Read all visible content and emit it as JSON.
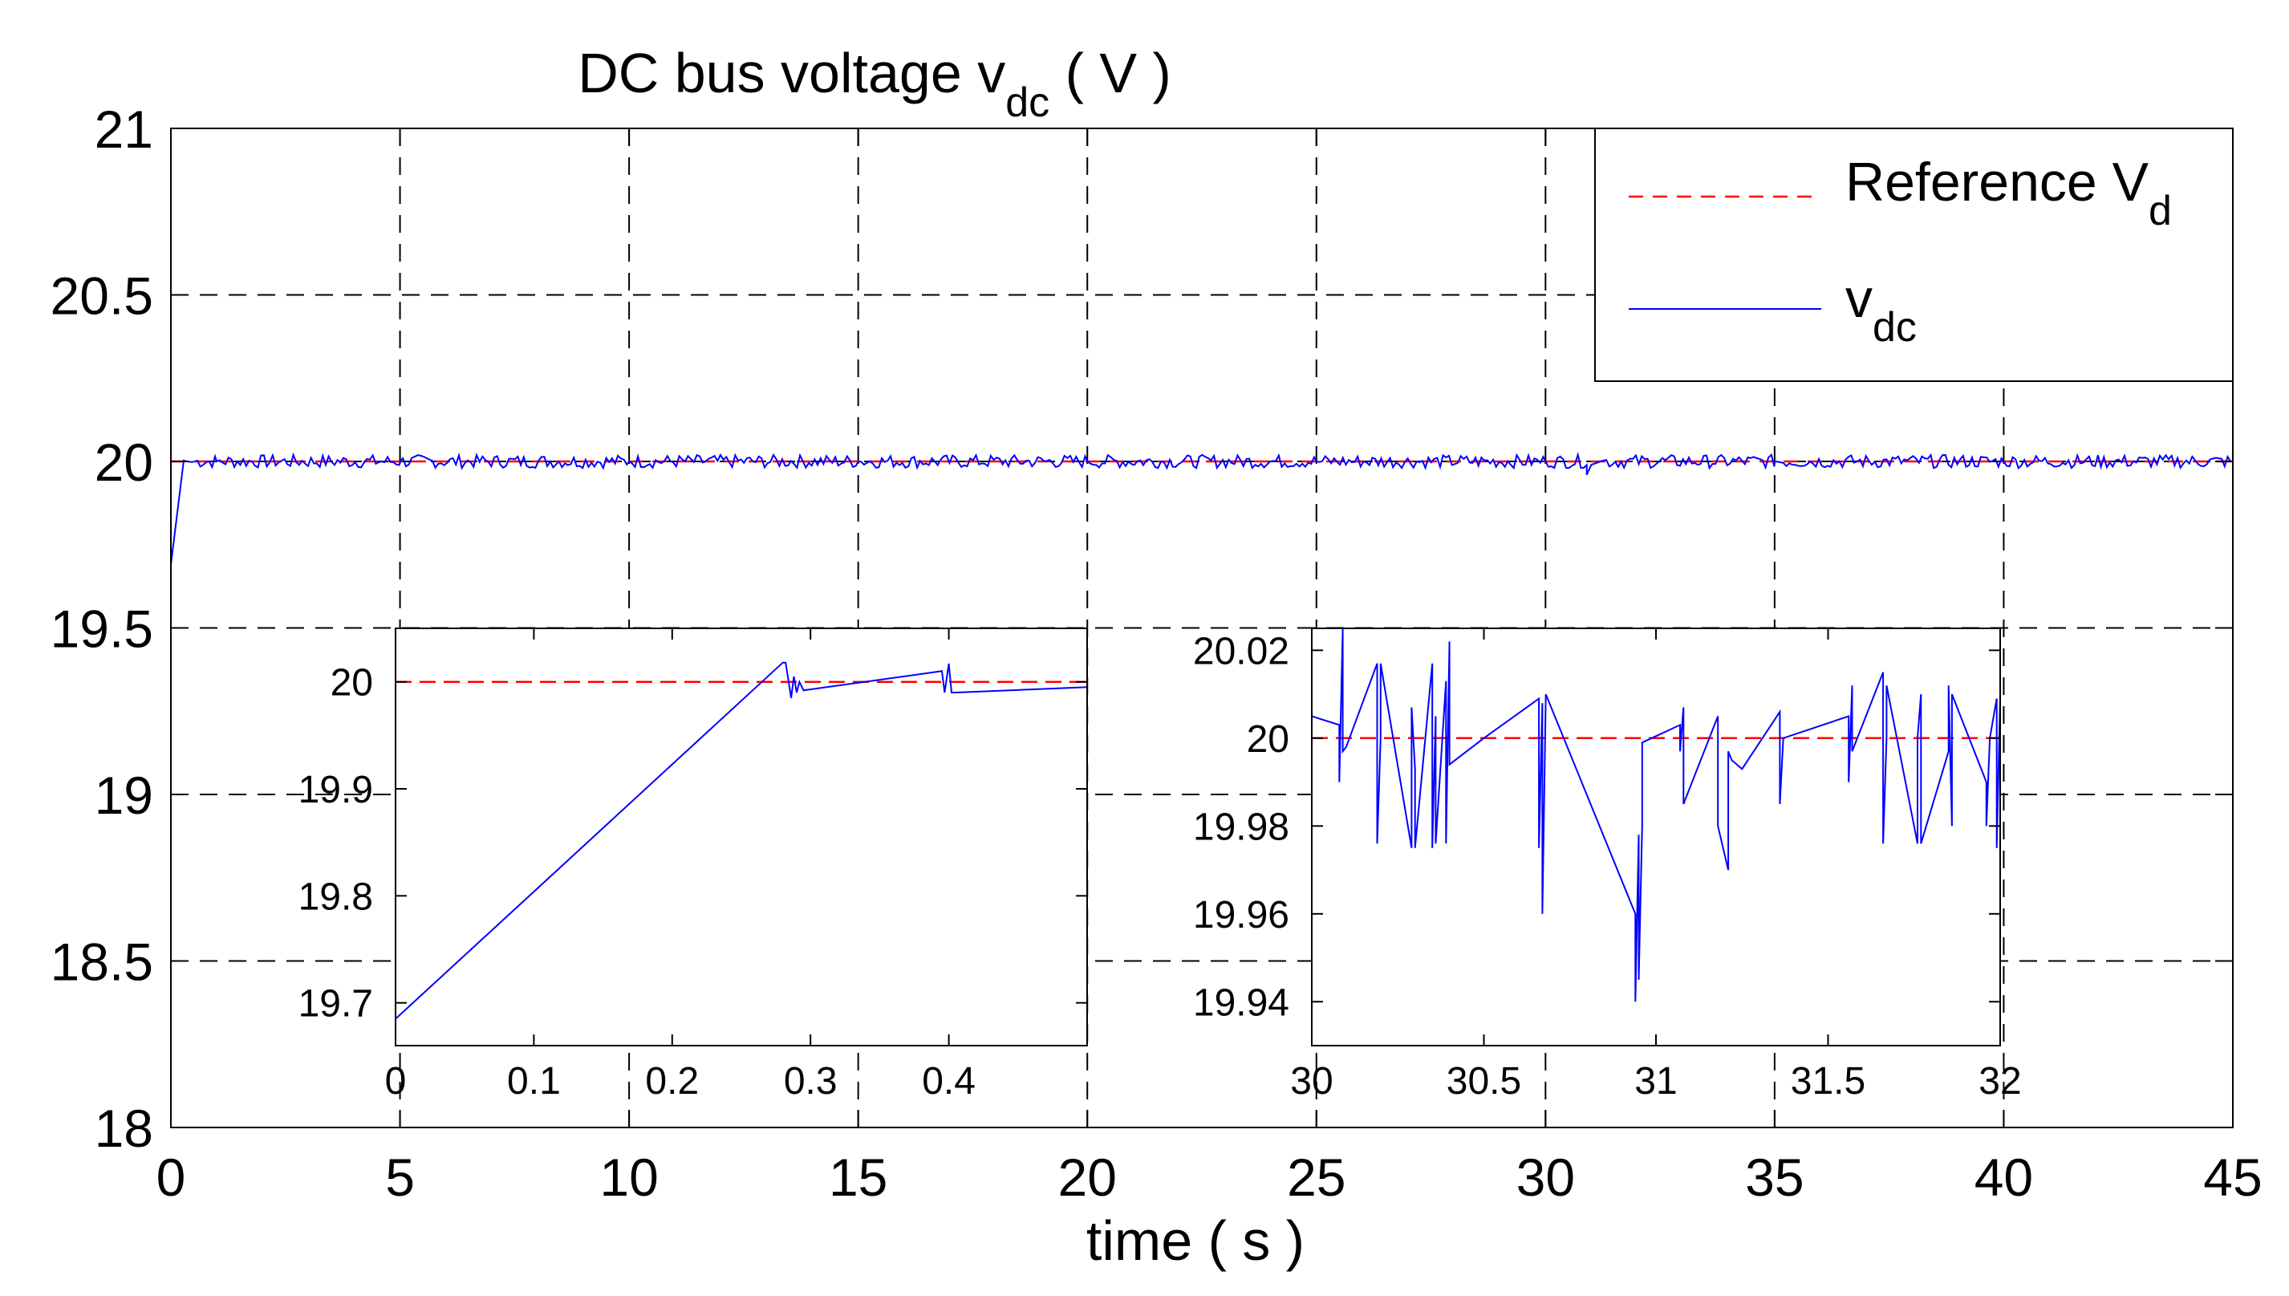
{
  "colors": {
    "reference": "#ff0000",
    "vdc": "#0000ff",
    "grid": "#000000",
    "axes": "#000000"
  },
  "chart_data": [
    {
      "type": "line",
      "role": "main",
      "title_main": "DC bus voltage v",
      "title_sub": "dc",
      "title_unit": " ( V )",
      "xlabel": "time ( s )",
      "ylabel": "",
      "xlim": [
        0,
        45
      ],
      "ylim": [
        18,
        21
      ],
      "xticks": [
        0,
        5,
        10,
        15,
        20,
        25,
        30,
        35,
        40,
        45
      ],
      "xtick_labels": [
        "0",
        "5",
        "10",
        "15",
        "20",
        "25",
        "30",
        "35",
        "40",
        "45"
      ],
      "yticks": [
        18,
        18.5,
        19,
        19.5,
        20,
        20.5,
        21
      ],
      "ytick_labels": [
        "18",
        "18.5",
        "19",
        "19.5",
        "20",
        "20.5",
        "21"
      ],
      "grid": true,
      "legend_position": "top-right",
      "legend": [
        {
          "main": "Reference V",
          "sub": "d",
          "style": "dashed",
          "color": "#ff0000"
        },
        {
          "main": "v",
          "sub": "dc",
          "style": "solid",
          "color": "#0000ff"
        }
      ],
      "series": [
        {
          "name": "Reference V_d",
          "style": "dashed",
          "color": "#ff0000",
          "x": [
            0,
            45
          ],
          "y": [
            20,
            20
          ]
        },
        {
          "name": "v_dc",
          "style": "solid",
          "color": "#0000ff",
          "x": [
            0,
            0.28,
            0.35,
            0.45,
            1,
            5,
            10,
            15,
            20,
            25,
            30,
            30.9,
            31,
            31.2,
            35,
            40,
            45
          ],
          "y": [
            19.69,
            20.003,
            20.0,
            19.998,
            20.0,
            20.0,
            20.0,
            20.0,
            20.0,
            20.0,
            20.0,
            19.96,
            19.99,
            20.0,
            20.0,
            20.0,
            20.0
          ],
          "ripple_band": [
            19.98,
            20.02
          ]
        }
      ]
    },
    {
      "type": "line",
      "role": "inset-left",
      "xlim": [
        0,
        0.5
      ],
      "ylim": [
        19.66,
        20.05
      ],
      "xticks": [
        0,
        0.1,
        0.2,
        0.3,
        0.4
      ],
      "xtick_labels": [
        "0",
        "0.1",
        "0.2",
        "0.3",
        "0.4"
      ],
      "yticks": [
        19.7,
        19.8,
        19.9,
        20
      ],
      "ytick_labels": [
        "19.7",
        "19.8",
        "19.9",
        "20"
      ],
      "grid": false,
      "series": [
        {
          "name": "Reference V_d",
          "style": "dashed",
          "color": "#ff0000",
          "x": [
            0,
            0.5
          ],
          "y": [
            20,
            20
          ]
        },
        {
          "name": "v_dc",
          "style": "solid",
          "color": "#0000ff",
          "x": [
            0,
            0.28,
            0.282,
            0.286,
            0.288,
            0.29,
            0.292,
            0.295,
            0.395,
            0.397,
            0.4,
            0.402,
            0.405,
            0.5
          ],
          "y": [
            19.685,
            20.018,
            20.018,
            19.985,
            20.005,
            19.99,
            20.0,
            19.992,
            20.01,
            19.99,
            20.017,
            19.99,
            19.99,
            19.995
          ]
        }
      ]
    },
    {
      "type": "line",
      "role": "inset-right",
      "xlim": [
        30,
        32
      ],
      "ylim": [
        19.93,
        20.025
      ],
      "xticks": [
        30,
        30.5,
        31,
        31.5,
        32
      ],
      "xtick_labels": [
        "30",
        "30.5",
        "31",
        "31.5",
        "32"
      ],
      "yticks": [
        19.94,
        19.96,
        19.98,
        20,
        20.02
      ],
      "ytick_labels": [
        "19.94",
        "19.96",
        "19.98",
        "20",
        "20.02"
      ],
      "grid": false,
      "series": [
        {
          "name": "Reference V_d",
          "style": "dashed",
          "color": "#ff0000",
          "x": [
            30,
            32
          ],
          "y": [
            20,
            20
          ]
        },
        {
          "name": "v_dc",
          "style": "solid",
          "color": "#0000ff",
          "x": [
            30,
            30.08,
            30.08,
            30.09,
            30.09,
            30.1,
            30.19,
            30.19,
            30.2,
            30.2,
            30.29,
            30.29,
            30.3,
            30.3,
            30.35,
            30.35,
            30.36,
            30.36,
            30.39,
            30.39,
            30.4,
            30.4,
            30.5,
            30.66,
            30.66,
            30.67,
            30.67,
            30.68,
            30.94,
            30.94,
            30.95,
            30.95,
            30.96,
            30.96,
            31.07,
            31.07,
            31.08,
            31.08,
            31.18,
            31.18,
            31.21,
            31.21,
            31.22,
            31.25,
            31.36,
            31.36,
            31.37,
            31.37,
            31.56,
            31.56,
            31.57,
            31.57,
            31.66,
            31.66,
            31.67,
            31.67,
            31.76,
            31.76,
            31.77,
            31.77,
            31.85,
            31.85,
            31.86,
            31.86,
            31.96,
            31.96,
            31.97,
            31.99,
            31.99,
            32
          ],
          "y": [
            20.005,
            20.003,
            19.99,
            20.025,
            19.997,
            19.998,
            20.017,
            19.976,
            20.0,
            20.017,
            19.975,
            20.007,
            19.993,
            19.975,
            20.017,
            19.975,
            20.005,
            19.976,
            20.013,
            19.976,
            20.022,
            19.994,
            20.0,
            20.009,
            19.975,
            20.008,
            19.96,
            20.01,
            19.96,
            19.94,
            19.978,
            19.945,
            19.98,
            19.999,
            20.003,
            19.997,
            20.007,
            19.985,
            20.005,
            19.98,
            19.97,
            19.997,
            19.995,
            19.993,
            20.006,
            19.985,
            20.0,
            20.0,
            20.005,
            19.99,
            20.012,
            19.997,
            20.015,
            19.976,
            20.0,
            20.012,
            19.976,
            20.0,
            20.01,
            19.976,
            19.997,
            20.012,
            19.98,
            20.01,
            19.99,
            19.98,
            20.0,
            20.009,
            19.975,
            20.009
          ]
        }
      ]
    }
  ]
}
